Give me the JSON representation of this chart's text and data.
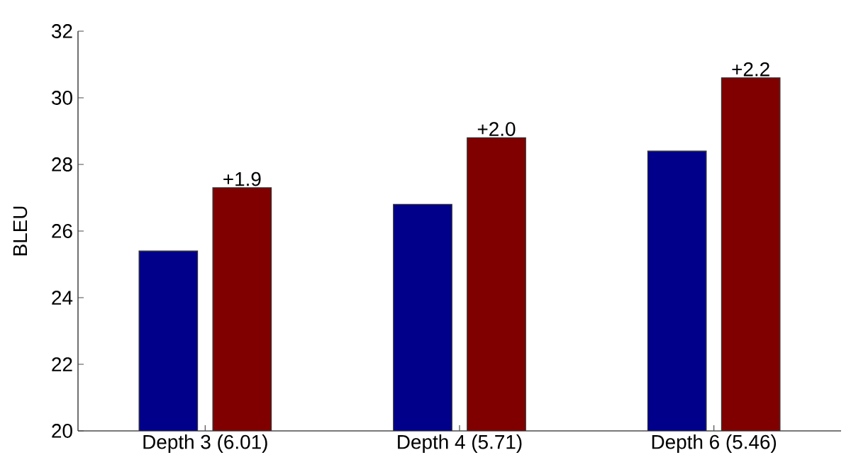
{
  "chart_data": {
    "type": "bar",
    "ylabel": "BLEU",
    "categories": [
      "Depth 3 (6.01)",
      "Depth 4 (5.71)",
      "Depth 6 (5.46)"
    ],
    "series": [
      {
        "color": "#00008b",
        "values": [
          25.4,
          26.8,
          28.4
        ]
      },
      {
        "color": "#800000",
        "values": [
          27.3,
          28.8,
          30.6
        ]
      }
    ],
    "annotations": [
      "+1.9",
      "+2.0",
      "+2.2"
    ],
    "ylim": [
      20,
      32
    ],
    "yticks": [
      20,
      22,
      24,
      26,
      28,
      30,
      32
    ]
  }
}
